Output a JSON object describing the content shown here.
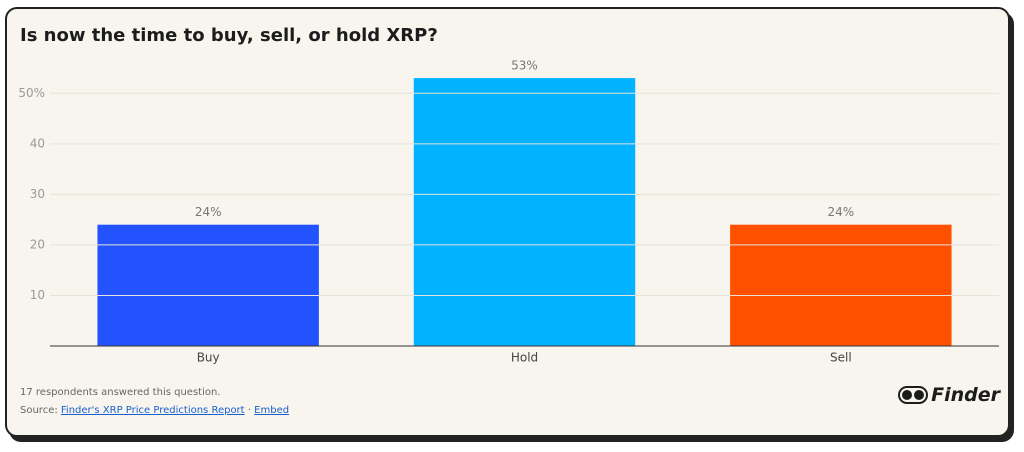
{
  "chart_data": {
    "type": "bar",
    "title": "Is now the time to buy, sell, or hold XRP?",
    "categories": [
      "Buy",
      "Hold",
      "Sell"
    ],
    "values": [
      24,
      53,
      24
    ],
    "value_labels": [
      "24%",
      "53%",
      "24%"
    ],
    "colors": [
      "#2353ff",
      "#00b2ff",
      "#ff5000"
    ],
    "ylim": [
      0,
      55
    ],
    "yticks": [
      10,
      20,
      30,
      40,
      {
        "value": 50,
        "label": "50%"
      }
    ],
    "grid": true
  },
  "footer": {
    "note": "17 respondents answered this question.",
    "source_prefix": "Source:",
    "source_link": "Finder's XRP Price Predictions Report",
    "separator": "·",
    "embed": "Embed",
    "logo": "Finder"
  }
}
